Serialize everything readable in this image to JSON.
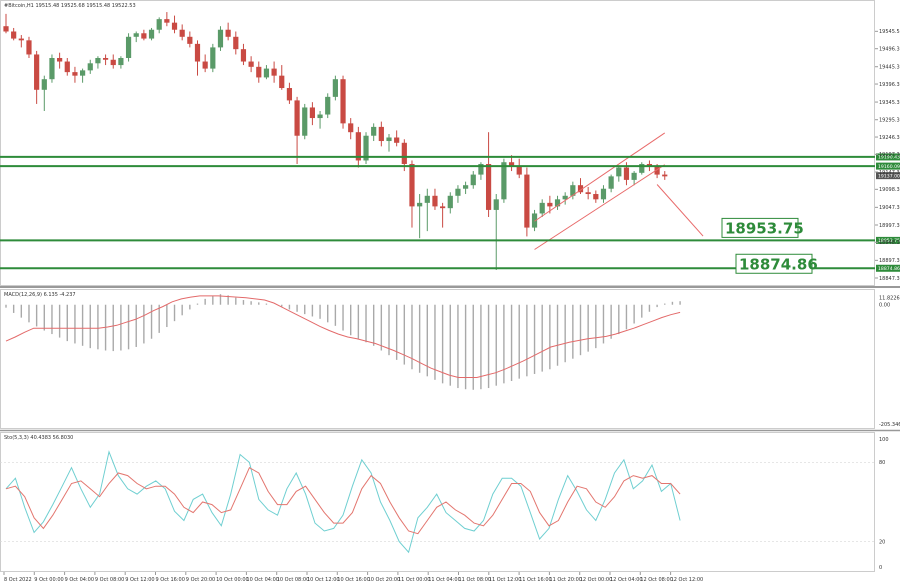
{
  "chart_data": [
    {
      "type": "candlestick",
      "info": "#Bitcoin,H1  19515.48 19525.68 19515.48 19522.53",
      "ylim": [
        18836,
        19620
      ],
      "y_ticks": [
        "19545.50",
        "19496.30",
        "19445.30",
        "19396.30",
        "19345.30",
        "19295.30",
        "19246.30",
        "19197.30",
        "19147.30",
        "19098.30",
        "19047.30",
        "18997.30",
        "18948.30",
        "18897.30",
        "18847.30"
      ],
      "candles": [
        {
          "o": 19560,
          "h": 19595,
          "l": 19540,
          "c": 19545
        },
        {
          "o": 19545,
          "h": 19555,
          "l": 19520,
          "c": 19525
        },
        {
          "o": 19525,
          "h": 19535,
          "l": 19500,
          "c": 19520
        },
        {
          "o": 19520,
          "h": 19530,
          "l": 19470,
          "c": 19480
        },
        {
          "o": 19480,
          "h": 19490,
          "l": 19340,
          "c": 19380
        },
        {
          "o": 19380,
          "h": 19420,
          "l": 19320,
          "c": 19410
        },
        {
          "o": 19410,
          "h": 19480,
          "l": 19400,
          "c": 19470
        },
        {
          "o": 19470,
          "h": 19485,
          "l": 19440,
          "c": 19460
        },
        {
          "o": 19460,
          "h": 19470,
          "l": 19420,
          "c": 19430
        },
        {
          "o": 19430,
          "h": 19445,
          "l": 19400,
          "c": 19420
        },
        {
          "o": 19420,
          "h": 19440,
          "l": 19400,
          "c": 19435
        },
        {
          "o": 19435,
          "h": 19465,
          "l": 19425,
          "c": 19455
        },
        {
          "o": 19455,
          "h": 19475,
          "l": 19440,
          "c": 19470
        },
        {
          "o": 19470,
          "h": 19480,
          "l": 19450,
          "c": 19465
        },
        {
          "o": 19465,
          "h": 19480,
          "l": 19440,
          "c": 19450
        },
        {
          "o": 19450,
          "h": 19475,
          "l": 19440,
          "c": 19470
        },
        {
          "o": 19470,
          "h": 19540,
          "l": 19460,
          "c": 19530
        },
        {
          "o": 19530,
          "h": 19545,
          "l": 19515,
          "c": 19540
        },
        {
          "o": 19540,
          "h": 19550,
          "l": 19520,
          "c": 19525
        },
        {
          "o": 19525,
          "h": 19555,
          "l": 19520,
          "c": 19550
        },
        {
          "o": 19550,
          "h": 19585,
          "l": 19540,
          "c": 19580
        },
        {
          "o": 19580,
          "h": 19600,
          "l": 19560,
          "c": 19570
        },
        {
          "o": 19570,
          "h": 19590,
          "l": 19540,
          "c": 19550
        },
        {
          "o": 19550,
          "h": 19565,
          "l": 19520,
          "c": 19530
        },
        {
          "o": 19530,
          "h": 19545,
          "l": 19500,
          "c": 19510
        },
        {
          "o": 19510,
          "h": 19520,
          "l": 19420,
          "c": 19460
        },
        {
          "o": 19460,
          "h": 19480,
          "l": 19430,
          "c": 19440
        },
        {
          "o": 19440,
          "h": 19510,
          "l": 19430,
          "c": 19500
        },
        {
          "o": 19500,
          "h": 19560,
          "l": 19490,
          "c": 19550
        },
        {
          "o": 19550,
          "h": 19570,
          "l": 19520,
          "c": 19530
        },
        {
          "o": 19530,
          "h": 19545,
          "l": 19480,
          "c": 19495
        },
        {
          "o": 19495,
          "h": 19510,
          "l": 19450,
          "c": 19460
        },
        {
          "o": 19460,
          "h": 19475,
          "l": 19430,
          "c": 19445
        },
        {
          "o": 19445,
          "h": 19460,
          "l": 19400,
          "c": 19415
        },
        {
          "o": 19415,
          "h": 19450,
          "l": 19410,
          "c": 19440
        },
        {
          "o": 19440,
          "h": 19460,
          "l": 19400,
          "c": 19420
        },
        {
          "o": 19420,
          "h": 19450,
          "l": 19380,
          "c": 19385
        },
        {
          "o": 19385,
          "h": 19400,
          "l": 19340,
          "c": 19350
        },
        {
          "o": 19350,
          "h": 19360,
          "l": 19170,
          "c": 19250
        },
        {
          "o": 19250,
          "h": 19340,
          "l": 19240,
          "c": 19330
        },
        {
          "o": 19330,
          "h": 19345,
          "l": 19280,
          "c": 19300
        },
        {
          "o": 19300,
          "h": 19320,
          "l": 19270,
          "c": 19310
        },
        {
          "o": 19310,
          "h": 19370,
          "l": 19300,
          "c": 19360
        },
        {
          "o": 19360,
          "h": 19420,
          "l": 19350,
          "c": 19410
        },
        {
          "o": 19410,
          "h": 19420,
          "l": 19270,
          "c": 19285
        },
        {
          "o": 19285,
          "h": 19300,
          "l": 19240,
          "c": 19260
        },
        {
          "o": 19260,
          "h": 19275,
          "l": 19160,
          "c": 19180
        },
        {
          "o": 19180,
          "h": 19260,
          "l": 19170,
          "c": 19250
        },
        {
          "o": 19250,
          "h": 19285,
          "l": 19235,
          "c": 19275
        },
        {
          "o": 19275,
          "h": 19290,
          "l": 19220,
          "c": 19235
        },
        {
          "o": 19235,
          "h": 19255,
          "l": 19205,
          "c": 19245
        },
        {
          "o": 19245,
          "h": 19265,
          "l": 19220,
          "c": 19230
        },
        {
          "o": 19230,
          "h": 19240,
          "l": 19150,
          "c": 19170
        },
        {
          "o": 19170,
          "h": 19180,
          "l": 18990,
          "c": 19050
        },
        {
          "o": 19050,
          "h": 19085,
          "l": 18960,
          "c": 19060
        },
        {
          "o": 19060,
          "h": 19100,
          "l": 18980,
          "c": 19080
        },
        {
          "o": 19080,
          "h": 19100,
          "l": 19040,
          "c": 19050
        },
        {
          "o": 19050,
          "h": 19060,
          "l": 18990,
          "c": 19045
        },
        {
          "o": 19045,
          "h": 19090,
          "l": 19030,
          "c": 19080
        },
        {
          "o": 19080,
          "h": 19110,
          "l": 19060,
          "c": 19100
        },
        {
          "o": 19100,
          "h": 19120,
          "l": 19085,
          "c": 19110
        },
        {
          "o": 19110,
          "h": 19150,
          "l": 19100,
          "c": 19140
        },
        {
          "o": 19140,
          "h": 19175,
          "l": 19125,
          "c": 19170
        },
        {
          "o": 19170,
          "h": 19260,
          "l": 19020,
          "c": 19040
        },
        {
          "o": 19040,
          "h": 19085,
          "l": 18870,
          "c": 19070
        },
        {
          "o": 19070,
          "h": 19185,
          "l": 19060,
          "c": 19175
        },
        {
          "o": 19175,
          "h": 19195,
          "l": 19150,
          "c": 19165
        },
        {
          "o": 19165,
          "h": 19185,
          "l": 19130,
          "c": 19140
        },
        {
          "o": 19140,
          "h": 19160,
          "l": 18965,
          "c": 18990
        },
        {
          "o": 18990,
          "h": 19040,
          "l": 18980,
          "c": 19030
        },
        {
          "o": 19030,
          "h": 19070,
          "l": 19020,
          "c": 19060
        },
        {
          "o": 19060,
          "h": 19080,
          "l": 19030,
          "c": 19050
        },
        {
          "o": 19050,
          "h": 19080,
          "l": 19040,
          "c": 19070
        },
        {
          "o": 19070,
          "h": 19090,
          "l": 19055,
          "c": 19080
        },
        {
          "o": 19080,
          "h": 19120,
          "l": 19070,
          "c": 19110
        },
        {
          "o": 19110,
          "h": 19130,
          "l": 19085,
          "c": 19090
        },
        {
          "o": 19090,
          "h": 19105,
          "l": 19070,
          "c": 19085
        },
        {
          "o": 19085,
          "h": 19095,
          "l": 19060,
          "c": 19070
        },
        {
          "o": 19070,
          "h": 19110,
          "l": 19060,
          "c": 19100
        },
        {
          "o": 19100,
          "h": 19140,
          "l": 19090,
          "c": 19135
        },
        {
          "o": 19135,
          "h": 19165,
          "l": 19120,
          "c": 19160
        },
        {
          "o": 19160,
          "h": 19175,
          "l": 19110,
          "c": 19125
        },
        {
          "o": 19125,
          "h": 19150,
          "l": 19110,
          "c": 19145
        },
        {
          "o": 19145,
          "h": 19175,
          "l": 19140,
          "c": 19170
        },
        {
          "o": 19170,
          "h": 19180,
          "l": 19150,
          "c": 19165
        },
        {
          "o": 19165,
          "h": 19170,
          "l": 19130,
          "c": 19140
        },
        {
          "o": 19140,
          "h": 19150,
          "l": 19125,
          "c": 19135
        }
      ],
      "levels": [
        {
          "y": 19190,
          "label": "19190.43"
        },
        {
          "y": 19164,
          "label": "19160.09"
        },
        {
          "y": 18953.75,
          "label": "18953.75",
          "big": true
        },
        {
          "y": 18874.86,
          "label": "18874.86",
          "big": true
        }
      ],
      "price_label": "19137.00",
      "channel": {
        "upper": [
          [
            69,
            19008
          ],
          [
            86,
            19258
          ]
        ],
        "lower": [
          [
            69,
            18928
          ],
          [
            86,
            19168
          ]
        ]
      },
      "projection": [
        [
          85,
          19112
        ],
        [
          91,
          18966
        ]
      ]
    },
    {
      "type": "histogram+line",
      "info": "MACD(12,26,9) 6.135 -4.237",
      "ylim": [
        -205,
        20
      ],
      "y_ticks": [
        "11.8226",
        "0.00",
        "-205.346"
      ],
      "values": [
        -5,
        -14,
        -22,
        -30,
        -37,
        -44,
        -50,
        -56,
        -62,
        -66,
        -70,
        -74,
        -76,
        -78,
        -79,
        -78,
        -76,
        -72,
        -66,
        -58,
        -48,
        -38,
        -28,
        -18,
        -8,
        2,
        10,
        15,
        18,
        16,
        12,
        8,
        6,
        4,
        2,
        0,
        -3,
        -8,
        -12,
        -16,
        -20,
        -24,
        -30,
        -36,
        -44,
        -52,
        -58,
        -64,
        -70,
        -78,
        -86,
        -94,
        -102,
        -110,
        -116,
        -122,
        -128,
        -134,
        -138,
        -142,
        -144,
        -145,
        -144,
        -142,
        -138,
        -134,
        -130,
        -126,
        -122,
        -118,
        -114,
        -110,
        -104,
        -98,
        -92,
        -86,
        -80,
        -74,
        -66,
        -58,
        -50,
        -42,
        -32,
        -22,
        -12,
        -4,
        2,
        5,
        6
      ],
      "signal": [
        -62,
        -55,
        -47,
        -40,
        -40,
        -40,
        -40,
        -40,
        -40,
        -40,
        -40,
        -38,
        -35,
        -30,
        -25,
        -18,
        -10,
        -3,
        5,
        10,
        13,
        15,
        15,
        15,
        14,
        13,
        12,
        10,
        8,
        3,
        -5,
        -13,
        -21,
        -29,
        -37,
        -44,
        -50,
        -55,
        -58,
        -62,
        -66,
        -72,
        -78,
        -85,
        -92,
        -100,
        -108,
        -114,
        -120,
        -124,
        -124,
        -124,
        -120,
        -116,
        -110,
        -103,
        -96,
        -88,
        -80,
        -72,
        -68,
        -64,
        -61,
        -58,
        -56,
        -54,
        -50,
        -45,
        -40,
        -34,
        -28,
        -22,
        -17,
        -13
      ]
    },
    {
      "type": "line",
      "info": "Sto(5,3,3) 40.4383 56.8030",
      "ylim": [
        0,
        100
      ],
      "y_ticks": [
        "100",
        "80",
        "20",
        "0"
      ],
      "k": [
        60,
        68,
        46,
        27,
        35,
        48,
        62,
        76,
        60,
        46,
        56,
        88,
        70,
        60,
        56,
        62,
        66,
        60,
        43,
        36,
        52,
        56,
        42,
        32,
        56,
        86,
        80,
        52,
        44,
        40,
        60,
        72,
        56,
        34,
        28,
        30,
        40,
        62,
        82,
        72,
        50,
        36,
        20,
        12,
        38,
        46,
        56,
        42,
        36,
        30,
        28,
        36,
        56,
        68,
        68,
        62,
        42,
        22,
        30,
        52,
        70,
        58,
        44,
        36,
        52,
        72,
        82,
        60,
        66,
        78,
        58,
        64,
        36
      ],
      "d": [
        60,
        62,
        54,
        38,
        30,
        40,
        52,
        64,
        66,
        60,
        54,
        64,
        72,
        70,
        64,
        60,
        62,
        62,
        56,
        46,
        42,
        50,
        48,
        42,
        44,
        60,
        76,
        72,
        58,
        48,
        48,
        58,
        62,
        52,
        42,
        34,
        34,
        42,
        60,
        70,
        64,
        50,
        38,
        28,
        26,
        36,
        46,
        50,
        44,
        40,
        34,
        32,
        40,
        52,
        64,
        64,
        58,
        42,
        32,
        36,
        50,
        62,
        60,
        50,
        46,
        54,
        66,
        70,
        68,
        70,
        64,
        64,
        56
      ]
    }
  ],
  "x_ticks": [
    "8 Oct 2022",
    "9 Oct 00:00",
    "9 Oct 04:00",
    "9 Oct 08:00",
    "9 Oct 12:00",
    "9 Oct 16:00",
    "9 Oct 20:00",
    "10 Oct 00:00",
    "10 Oct 04:00",
    "10 Oct 08:00",
    "10 Oct 12:00",
    "10 Oct 16:00",
    "10 Oct 20:00",
    "11 Oct 00:00",
    "11 Oct 04:00",
    "11 Oct 08:00",
    "11 Oct 12:00",
    "11 Oct 16:00",
    "11 Oct 20:00",
    "12 Oct 00:00",
    "12 Oct 04:00",
    "12 Oct 08:00",
    "12 Oct 12:00"
  ],
  "colors": {
    "bull": "#5a9a68",
    "bear": "#c94a43",
    "level": "#2e8b3a",
    "channel": "#e86a6a",
    "macd": "#a9a9a9",
    "signal": "#e36a6a",
    "stoK": "#6fcfd1",
    "stoD": "#e3766f"
  }
}
